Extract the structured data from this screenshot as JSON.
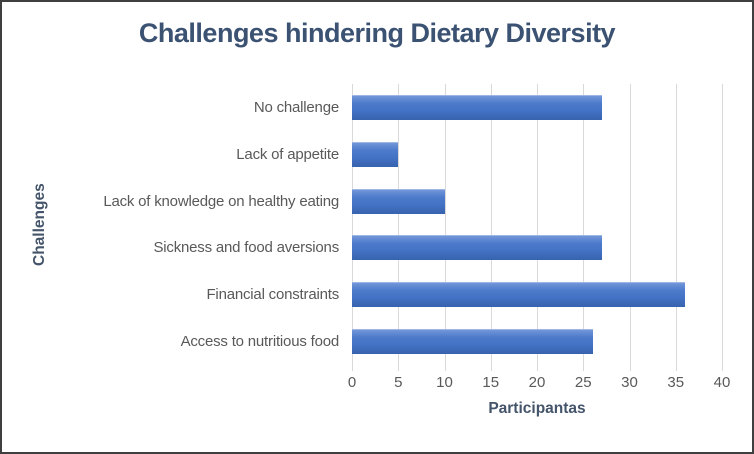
{
  "chart_data": {
    "type": "bar",
    "orientation": "horizontal",
    "title": "Challenges hindering Dietary Diversity",
    "xlabel": "Participantas",
    "ylabel": "Challenges",
    "categories": [
      "No challenge",
      "Lack of appetite",
      "Lack of knowledge on healthy eating",
      "Sickness and food aversions",
      "Financial constraints",
      "Access to nutritious food"
    ],
    "values": [
      27,
      5,
      10,
      27,
      36,
      26
    ],
    "xlim": [
      0,
      40
    ],
    "xticks": [
      0,
      5,
      10,
      15,
      20,
      25,
      30,
      35,
      40
    ],
    "grid": true,
    "legend": false,
    "colors": {
      "bar": "#4472C4",
      "gridline": "#D9D9D9",
      "title_text": "#3B5272",
      "axis_title_text": "#44546A",
      "tick_text": "#595959",
      "figure_border": "#3F3F3F"
    }
  }
}
